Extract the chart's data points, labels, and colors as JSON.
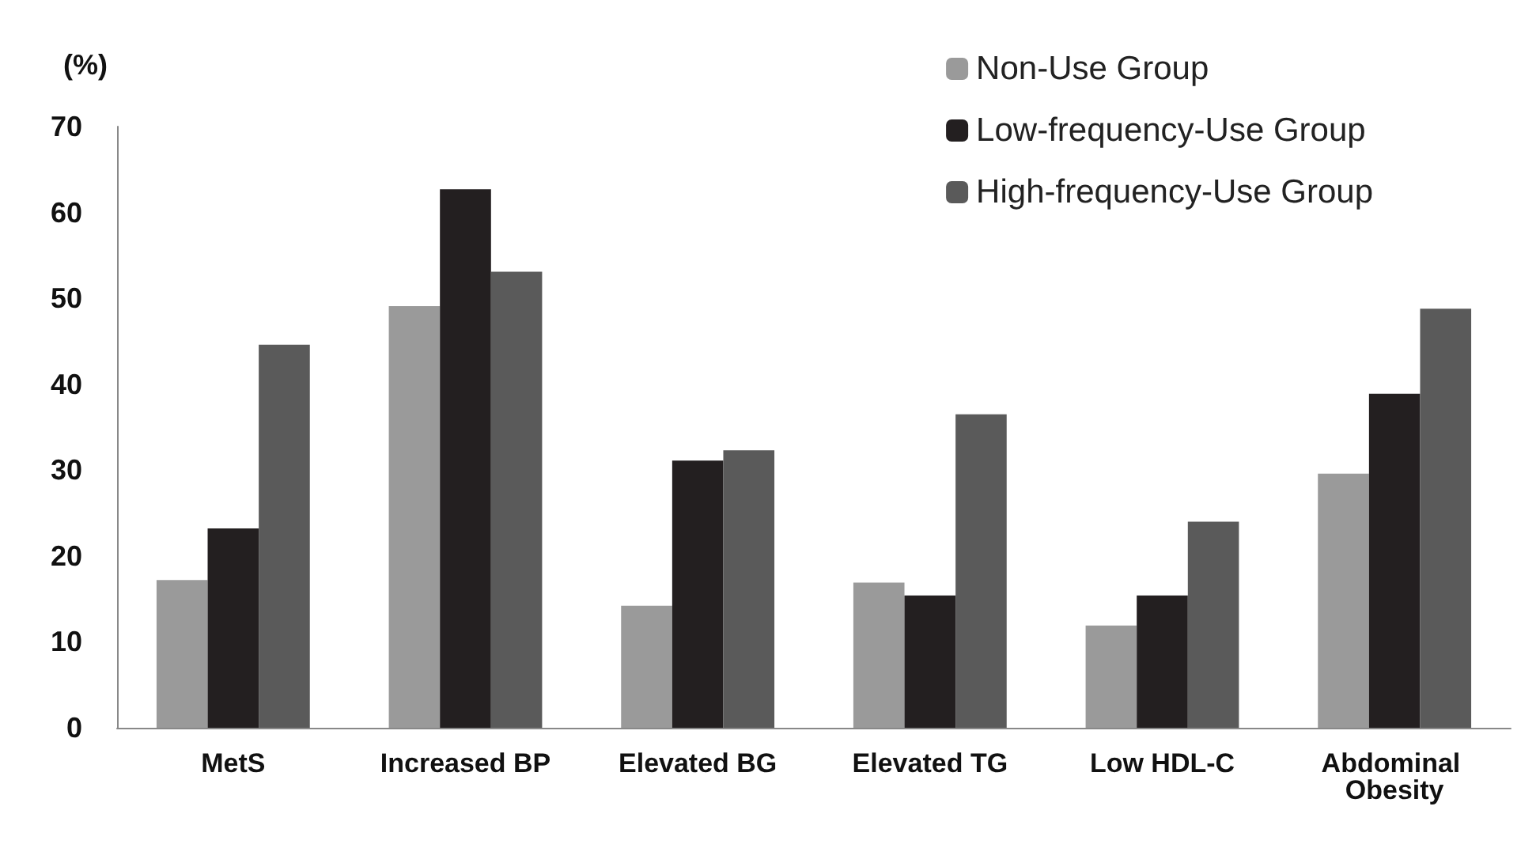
{
  "chart_data": {
    "type": "bar",
    "ylabel": "(%)",
    "categories": [
      "MetS",
      "Increased BP",
      "Elevated BG",
      "Elevated TG",
      "Low HDL-C",
      "Abdominal Obesity"
    ],
    "series": [
      {
        "name": "Non-Use Group",
        "color": "#9a9a9a",
        "values": [
          17.2,
          49.1,
          14.2,
          16.9,
          11.9,
          29.6
        ]
      },
      {
        "name": "Low-frequency-Use Group",
        "color": "#231f20",
        "values": [
          23.2,
          62.7,
          31.1,
          15.4,
          15.4,
          38.9
        ]
      },
      {
        "name": "High-frequency-Use Group",
        "color": "#5a5a5a",
        "values": [
          44.6,
          53.1,
          32.3,
          36.5,
          24.0,
          48.8
        ]
      }
    ],
    "ylim": [
      0,
      70
    ],
    "yticks": [
      0,
      10,
      20,
      30,
      40,
      50,
      60,
      70
    ],
    "grid": false,
    "legend": "top right"
  }
}
